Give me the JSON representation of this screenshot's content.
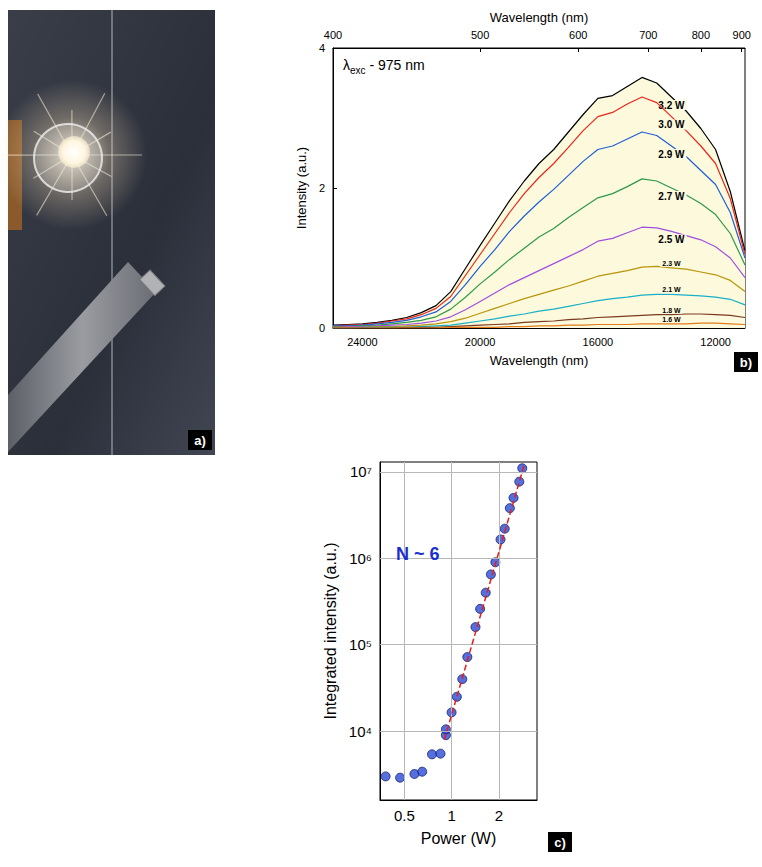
{
  "chart_data": [
    {
      "type": "photo",
      "panel": "a)"
    },
    {
      "type": "line",
      "panel": "b)",
      "annotation": {
        "main": "λ",
        "subscript": "exc",
        "tail": " - 975 nm"
      },
      "xlabel": "Wavelength (nm)",
      "x2label": "Wavelength (nm)",
      "ylabel": "Intensity (a.u.)",
      "xlim": [
        25000,
        11000
      ],
      "xticks": [
        24000,
        20000,
        16000,
        12000
      ],
      "x2lim": [
        25000,
        11000
      ],
      "x2ticks": [
        {
          "value": 25000,
          "label": "400"
        },
        {
          "value": 20000,
          "label": "500"
        },
        {
          "value": 16667,
          "label": "600"
        },
        {
          "value": 14286,
          "label": "700"
        },
        {
          "value": 12500,
          "label": "800"
        },
        {
          "value": 11111,
          "label": "900"
        }
      ],
      "ylim": [
        0,
        4
      ],
      "yticks": [
        0,
        2,
        4
      ],
      "grid": false,
      "x": [
        25000,
        24500,
        24000,
        23500,
        23000,
        22500,
        22000,
        21500,
        21000,
        20500,
        20000,
        19500,
        19000,
        18500,
        18000,
        17500,
        17000,
        16500,
        16000,
        15500,
        15000,
        14500,
        14000,
        13500,
        13000,
        12500,
        12000,
        11500,
        11000
      ],
      "series": [
        {
          "name": "3.2 W",
          "type": "area",
          "color": "#000000",
          "values": [
            0.04,
            0.05,
            0.06,
            0.08,
            0.11,
            0.15,
            0.22,
            0.32,
            0.52,
            0.85,
            1.18,
            1.5,
            1.82,
            2.1,
            2.35,
            2.55,
            2.8,
            3.05,
            3.28,
            3.32,
            3.45,
            3.58,
            3.5,
            3.3,
            3.1,
            2.85,
            2.55,
            1.95,
            1.1
          ]
        },
        {
          "name": "3.0 W",
          "type": "line",
          "color": "#e8261c",
          "values": [
            0.03,
            0.04,
            0.05,
            0.07,
            0.1,
            0.13,
            0.19,
            0.28,
            0.45,
            0.75,
            1.05,
            1.35,
            1.65,
            1.92,
            2.15,
            2.35,
            2.58,
            2.82,
            3.02,
            3.08,
            3.2,
            3.3,
            3.22,
            3.02,
            2.82,
            2.6,
            2.35,
            1.85,
            1.05
          ]
        },
        {
          "name": "2.9 W",
          "type": "line",
          "color": "#1f5fd6",
          "values": [
            0.03,
            0.03,
            0.04,
            0.06,
            0.08,
            0.11,
            0.16,
            0.23,
            0.38,
            0.62,
            0.88,
            1.12,
            1.38,
            1.6,
            1.8,
            1.98,
            2.18,
            2.38,
            2.55,
            2.6,
            2.7,
            2.8,
            2.75,
            2.6,
            2.45,
            2.25,
            2.05,
            1.65,
            1.0
          ]
        },
        {
          "name": "2.7 W",
          "type": "line",
          "color": "#2e9a4a",
          "values": [
            0.02,
            0.02,
            0.03,
            0.04,
            0.06,
            0.08,
            0.11,
            0.16,
            0.27,
            0.44,
            0.63,
            0.8,
            0.98,
            1.14,
            1.3,
            1.42,
            1.58,
            1.72,
            1.86,
            1.92,
            2.02,
            2.13,
            2.1,
            2.0,
            1.9,
            1.78,
            1.62,
            1.35,
            0.9
          ]
        },
        {
          "name": "2.5 W",
          "type": "line",
          "color": "#a050e0",
          "values": [
            0.01,
            0.02,
            0.02,
            0.03,
            0.04,
            0.05,
            0.07,
            0.1,
            0.16,
            0.26,
            0.38,
            0.5,
            0.62,
            0.72,
            0.82,
            0.92,
            1.02,
            1.12,
            1.24,
            1.28,
            1.36,
            1.44,
            1.43,
            1.38,
            1.32,
            1.26,
            1.16,
            1.0,
            0.72
          ]
        },
        {
          "name": "2.3 W",
          "type": "line",
          "color": "#b8960a",
          "values": [
            0.01,
            0.01,
            0.01,
            0.02,
            0.02,
            0.03,
            0.04,
            0.06,
            0.09,
            0.14,
            0.21,
            0.28,
            0.35,
            0.42,
            0.48,
            0.54,
            0.6,
            0.67,
            0.74,
            0.78,
            0.82,
            0.87,
            0.88,
            0.86,
            0.84,
            0.8,
            0.76,
            0.68,
            0.52
          ]
        },
        {
          "name": "2.1 W",
          "type": "line",
          "color": "#17b0c8",
          "values": [
            0,
            0,
            0.01,
            0.01,
            0.01,
            0.01,
            0.02,
            0.03,
            0.04,
            0.07,
            0.1,
            0.13,
            0.17,
            0.2,
            0.24,
            0.27,
            0.31,
            0.35,
            0.39,
            0.42,
            0.44,
            0.47,
            0.48,
            0.48,
            0.47,
            0.46,
            0.44,
            0.41,
            0.33
          ]
        },
        {
          "name": "1.8 W",
          "type": "line",
          "color": "#7a3b1e",
          "values": [
            0,
            0,
            0,
            0,
            0,
            0.01,
            0.01,
            0.01,
            0.02,
            0.03,
            0.04,
            0.05,
            0.06,
            0.08,
            0.09,
            0.1,
            0.12,
            0.13,
            0.15,
            0.16,
            0.17,
            0.18,
            0.19,
            0.19,
            0.2,
            0.2,
            0.19,
            0.18,
            0.15
          ]
        },
        {
          "name": "1.6 W",
          "type": "line",
          "color": "#e07a1a",
          "values": [
            0,
            0,
            0,
            0,
            0,
            0,
            0,
            0,
            0.01,
            0.01,
            0.01,
            0.01,
            0.02,
            0.02,
            0.03,
            0.03,
            0.04,
            0.04,
            0.05,
            0.05,
            0.05,
            0.06,
            0.06,
            0.06,
            0.06,
            0.07,
            0.07,
            0.06,
            0.05
          ]
        }
      ]
    },
    {
      "type": "scatter",
      "panel": "c)",
      "annotation": "N ~ 6",
      "xlabel": "Power (W)",
      "ylabel": "Integrated intensity (a.u.)",
      "log": true,
      "grid": true,
      "xlim": [
        0.35,
        3.5
      ],
      "xticks": [
        0.5,
        1,
        2
      ],
      "ylim": [
        1600,
        13000000
      ],
      "yticks": [
        {
          "value": 10000,
          "label": "10⁴"
        },
        {
          "value": 100000,
          "label": "10⁵"
        },
        {
          "value": 1000000,
          "label": "10⁶"
        },
        {
          "value": 10000000,
          "label": "10⁷"
        }
      ],
      "series": [
        {
          "type": "scatter",
          "color": "#2a4bd7",
          "marker": "circle",
          "x": [
            0.38,
            0.47,
            0.58,
            0.65,
            0.75,
            0.85,
            0.92,
            0.92,
            1.0,
            1.08,
            1.17,
            1.26,
            1.42,
            1.52,
            1.65,
            1.78,
            1.9,
            2.05,
            2.18,
            2.35,
            2.48,
            2.7,
            2.82
          ],
          "values": [
            3000,
            2900,
            3200,
            3400,
            5400,
            5500,
            9000,
            10500,
            16500,
            25000,
            40000,
            72000,
            160000,
            260000,
            400000,
            650000,
            900000,
            1650000,
            2200000,
            3800000,
            5000000,
            7700000,
            11000000
          ]
        },
        {
          "type": "line",
          "color": "#e02020",
          "line_style": "dashed",
          "x": [
            0.9,
            2.9
          ],
          "values": [
            8000,
            12000000
          ]
        }
      ]
    }
  ]
}
